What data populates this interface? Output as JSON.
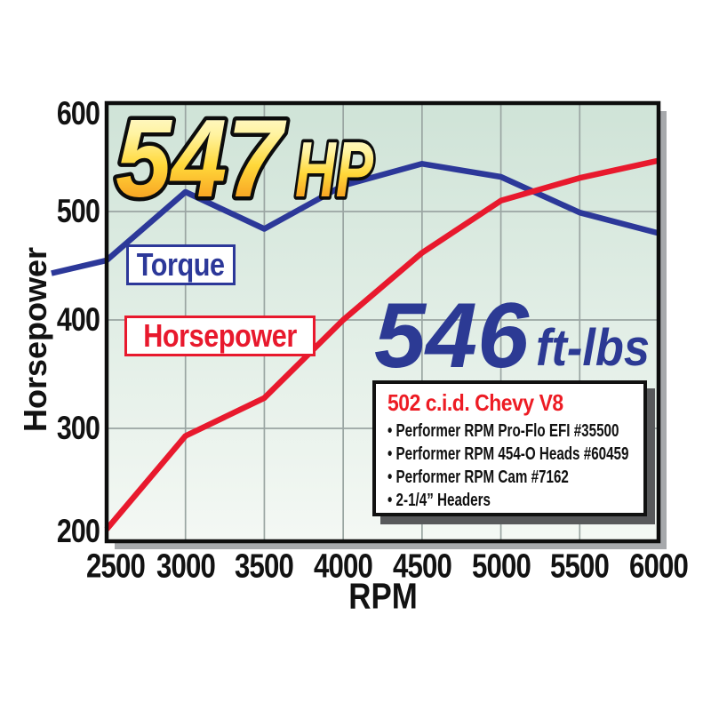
{
  "chart_data": {
    "type": "line",
    "title": "",
    "xlabel": "RPM",
    "ylabel": "Horsepower",
    "xlim": [
      2500,
      6000
    ],
    "ylim": [
      200,
      600
    ],
    "x_ticks": [
      2500,
      3000,
      3500,
      4000,
      4500,
      5000,
      5500,
      6000
    ],
    "y_ticks": [
      200,
      300,
      400,
      500,
      600
    ],
    "x_grid": [
      3000,
      3500,
      4000,
      4500,
      5000,
      5500
    ],
    "y_grid": [
      300,
      400,
      500
    ],
    "grid": true,
    "legend_position": "inline label boxes on plot",
    "series": [
      {
        "name": "Torque",
        "unit": "ft-lbs",
        "color": "#2c3899",
        "x": [
          2150,
          2500,
          3000,
          3500,
          4000,
          4500,
          5000,
          5500,
          6000
        ],
        "values": [
          443,
          455,
          518,
          484,
          524,
          544,
          532,
          499,
          480
        ]
      },
      {
        "name": "Horsepower",
        "unit": "hp",
        "color": "#e8192d",
        "x": [
          2500,
          3000,
          3500,
          4000,
          4500,
          5000,
          5500,
          6000
        ],
        "values": [
          207,
          293,
          328,
          400,
          462,
          510,
          531,
          547
        ]
      }
    ],
    "annotations": {
      "peak_hp_value": "547",
      "peak_hp_unit": "HP",
      "peak_torque_value": "546",
      "peak_torque_unit": "ft-lbs"
    }
  },
  "legend": {
    "torque": "Torque",
    "horsepower": "Horsepower"
  },
  "info_box": {
    "title": "502 c.i.d. Chevy V8",
    "bullets": [
      "Performer RPM Pro-Flo EFI #35500",
      "Performer RPM 454-O Heads #60459",
      "Performer RPM Cam #7162",
      "2-1/4” Headers"
    ]
  },
  "colors": {
    "torque_line": "#2c3899",
    "hp_line": "#e8192d",
    "peak_torque_text": "#2c3a94",
    "peak_hp_gradient_top": "#fffce8",
    "peak_hp_gradient_bottom": "#f07f1a",
    "plot_bg_top": "#cfe3d7",
    "plot_bg_bottom": "#f4f8f4",
    "gridline": "#9aa5a2",
    "plot_shadow": "#a7a9ac",
    "info_title": "#ed1c24"
  }
}
